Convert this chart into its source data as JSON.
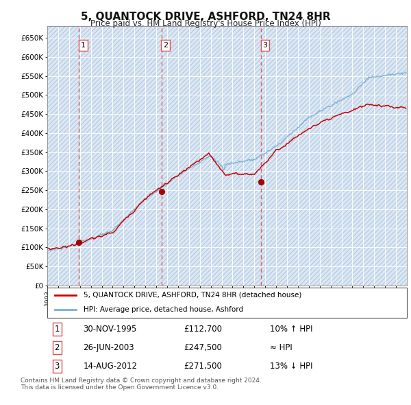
{
  "title": "5, QUANTOCK DRIVE, ASHFORD, TN24 8HR",
  "subtitle": "Price paid vs. HM Land Registry's House Price Index (HPI)",
  "background_color": "#ffffff",
  "plot_bg_color": "#dce8f5",
  "hatch_color": "#b8cce0",
  "ylim": [
    0,
    680000
  ],
  "yticks": [
    0,
    50000,
    100000,
    150000,
    200000,
    250000,
    300000,
    350000,
    400000,
    450000,
    500000,
    550000,
    600000,
    650000
  ],
  "ytick_labels": [
    "£0",
    "£50K",
    "£100K",
    "£150K",
    "£200K",
    "£250K",
    "£300K",
    "£350K",
    "£400K",
    "£450K",
    "£500K",
    "£550K",
    "£600K",
    "£650K"
  ],
  "sale_years": [
    1995.917,
    2003.49,
    2012.62
  ],
  "sale_prices": [
    112700,
    247500,
    271500
  ],
  "sale_labels": [
    "1",
    "2",
    "3"
  ],
  "sale_label_info": [
    {
      "num": "1",
      "date": "30-NOV-1995",
      "price": "£112,700",
      "relation": "10% ↑ HPI"
    },
    {
      "num": "2",
      "date": "26-JUN-2003",
      "price": "£247,500",
      "relation": "≈ HPI"
    },
    {
      "num": "3",
      "date": "14-AUG-2012",
      "price": "£271,500",
      "relation": "13% ↓ HPI"
    }
  ],
  "legend_entries": [
    {
      "label": "5, QUANTOCK DRIVE, ASHFORD, TN24 8HR (detached house)",
      "color": "#cc0000"
    },
    {
      "label": "HPI: Average price, detached house, Ashford",
      "color": "#7ab0d4"
    }
  ],
  "footer": "Contains HM Land Registry data © Crown copyright and database right 2024.\nThis data is licensed under the Open Government Licence v3.0.",
  "red_line_color": "#cc0000",
  "blue_line_color": "#7ab0d4",
  "vline_color": "#e05050",
  "marker_color": "#aa0000"
}
